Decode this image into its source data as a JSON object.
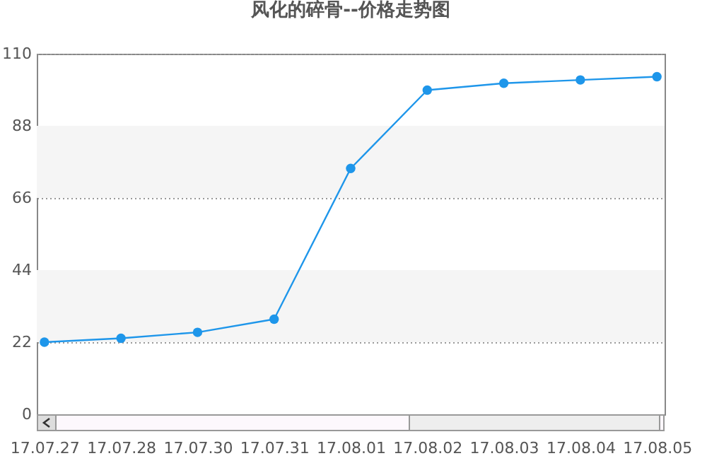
{
  "chart_data": {
    "type": "line",
    "title": "风化的碎骨--价格走势图",
    "categories": [
      "17.07.27",
      "17.07.28",
      "17.07.30",
      "17.07.31",
      "17.08.01",
      "17.08.02",
      "17.08.03",
      "17.08.04",
      "17.08.05"
    ],
    "series": [
      {
        "color": "#1e96ea",
        "values": [
          22,
          23.2,
          25,
          29,
          75,
          98.9,
          101,
          102,
          103
        ]
      }
    ],
    "ylim": [
      0,
      110
    ],
    "yticks": [
      0,
      22,
      44,
      66,
      88,
      110
    ],
    "grid": "y",
    "marker": "circle",
    "line_style": "solid",
    "bands": [
      {
        "axis": "y",
        "from": 22,
        "to": 44,
        "color": "#f5f5f5"
      },
      {
        "axis": "y",
        "from": 66,
        "to": 88,
        "color": "#f5f5f5"
      }
    ]
  }
}
